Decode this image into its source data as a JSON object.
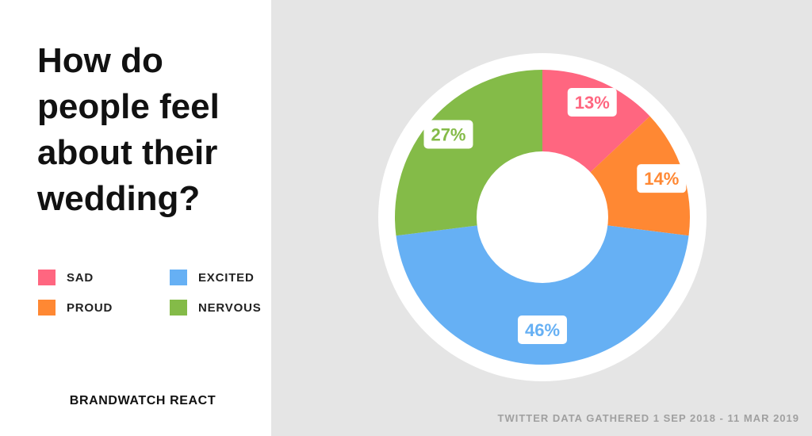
{
  "title_lines": [
    "How do",
    "people feel",
    "about their",
    "wedding?"
  ],
  "brand": "BRANDWATCH REACT",
  "footnote": "TWITTER DATA GATHERED 1 SEP 2018 - 11 MAR 2019",
  "colors": {
    "sad": "#ff6680",
    "proud": "#ff8833",
    "excited": "#66b0f4",
    "nervous": "#84bb48",
    "left_background": "#ffffff",
    "right_background": "#e5e5e5"
  },
  "chart_data": {
    "type": "pie",
    "variant": "donut",
    "title": "How do people feel about their wedding?",
    "slices": [
      {
        "label": "SAD",
        "value": 13,
        "value_label": "13%",
        "color": "#ff6680"
      },
      {
        "label": "PROUD",
        "value": 14,
        "value_label": "14%",
        "color": "#ff8833"
      },
      {
        "label": "EXCITED",
        "value": 46,
        "value_label": "46%",
        "color": "#66b0f4"
      },
      {
        "label": "NERVOUS",
        "value": 27,
        "value_label": "27%",
        "color": "#84bb48"
      }
    ],
    "legend": {
      "position": "left",
      "items": [
        "SAD",
        "EXCITED",
        "PROUD",
        "NERVOUS"
      ]
    },
    "source": "TWITTER DATA GATHERED 1 SEP 2018 - 11 MAR 2019"
  }
}
